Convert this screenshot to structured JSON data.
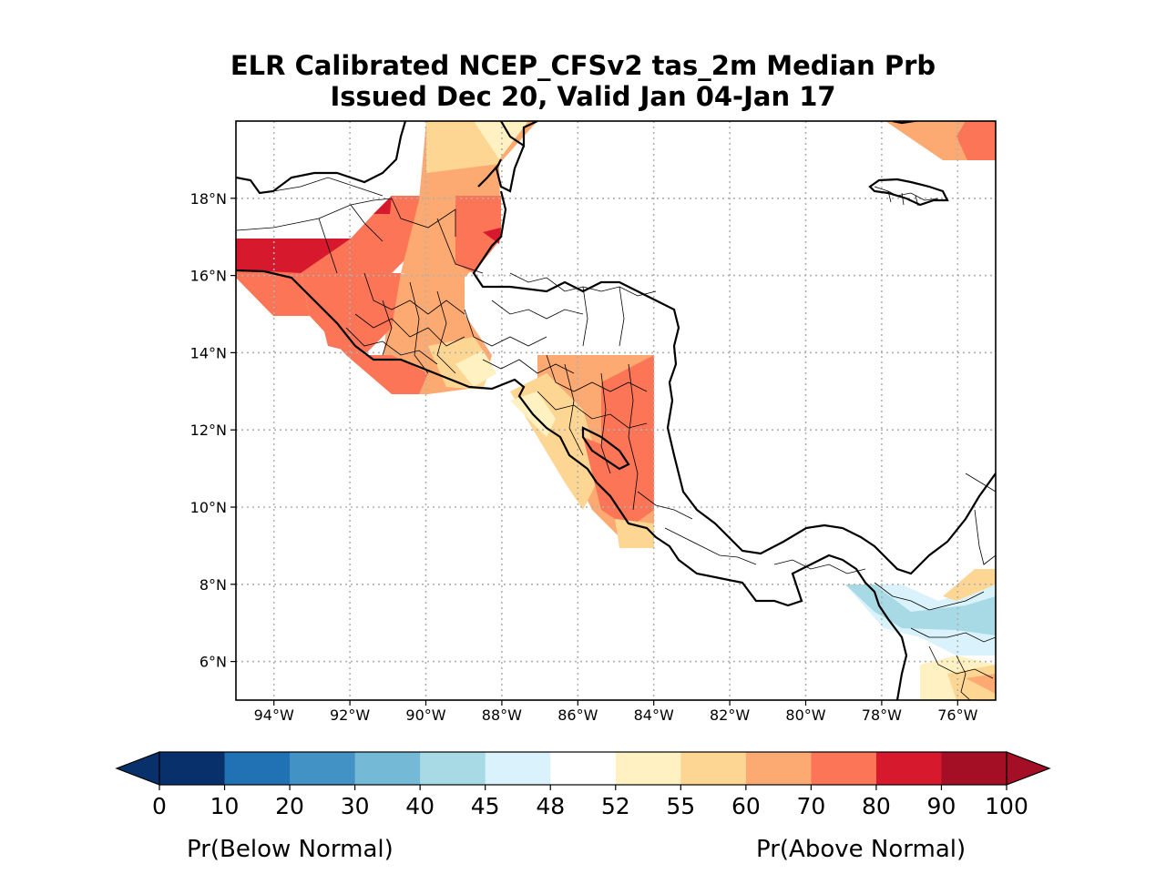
{
  "title": {
    "line1": "ELR Calibrated NCEP_CFSv2 tas_2m Median Prb",
    "line2": "Issued Dec 20, Valid Jan 04-Jan 17"
  },
  "axes": {
    "lat_ticks": [
      "18°N",
      "16°N",
      "14°N",
      "12°N",
      "10°N",
      "8°N",
      "6°N"
    ],
    "lon_ticks": [
      "94°W",
      "92°W",
      "90°W",
      "88°W",
      "86°W",
      "84°W",
      "82°W",
      "80°W",
      "78°W",
      "76°W"
    ],
    "gridlines": true
  },
  "colorbar": {
    "ticks": [
      "0",
      "10",
      "20",
      "30",
      "40",
      "45",
      "48",
      "52",
      "55",
      "60",
      "70",
      "80",
      "90",
      "100"
    ],
    "colors": [
      "#08306b",
      "#2171b5",
      "#4292c6",
      "#74b9d6",
      "#a8dae6",
      "#d9f2fb",
      "#ffffff",
      "#fff1c2",
      "#fed694",
      "#fdaa72",
      "#fb7556",
      "#d7192d",
      "#a50f26"
    ],
    "label_below": "Pr(Below Normal)",
    "label_above": "Pr(Above Normal)"
  }
}
